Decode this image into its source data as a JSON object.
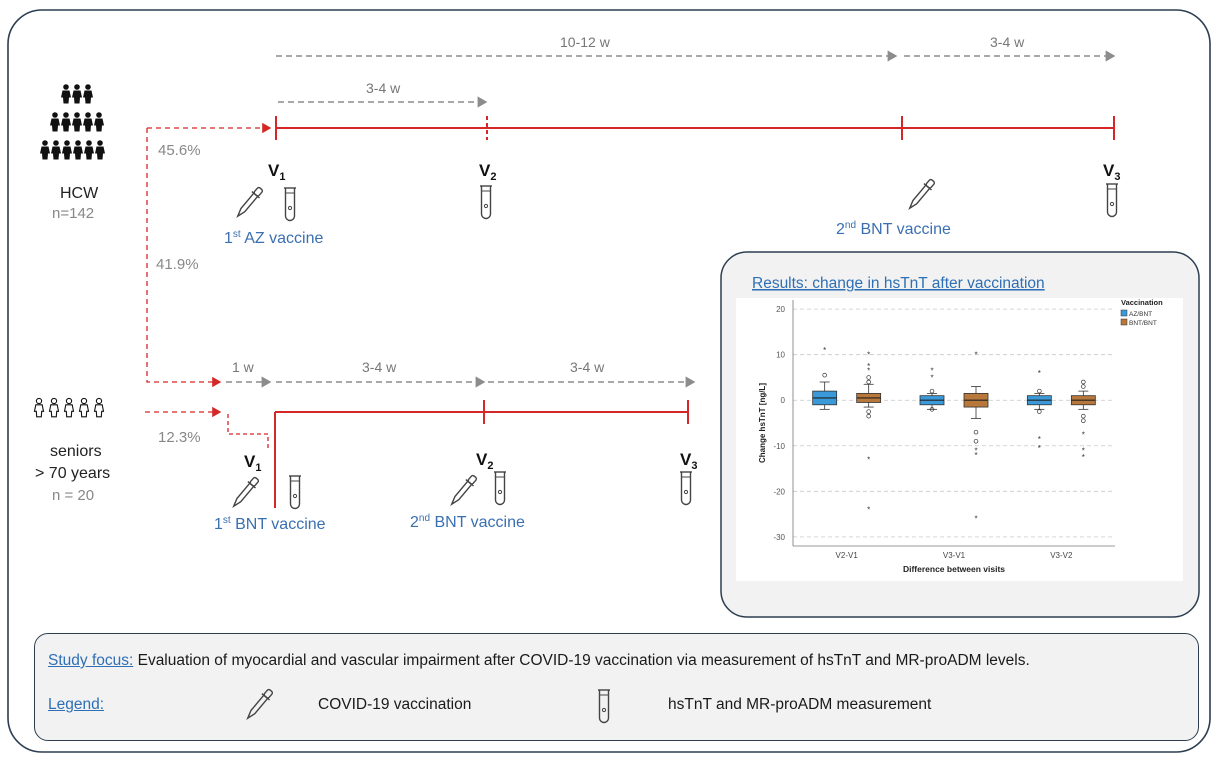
{
  "hcw": {
    "label": "HCW",
    "n": "n=142",
    "pct_top": "45.6%",
    "pct_mid": "41.9%",
    "timeline_top": "10-12 w",
    "timeline_top_right": "3-4 w",
    "interval": "3-4 w",
    "v1": "V",
    "v1_sub": "1",
    "v2": "V",
    "v2_sub": "2",
    "v3": "V",
    "v3_sub": "3",
    "vaccine1_sup": "1",
    "vaccine1_supsuffix": "st",
    "vaccine1_text": " AZ vaccine",
    "vaccine2_sup": "2",
    "vaccine2_supsuffix": "nd",
    "vaccine2_text": " BNT vaccine"
  },
  "seniors": {
    "label_line1": "seniors",
    "label_line2": "> 70 years",
    "n": "n = 20",
    "pct": "12.3%",
    "interval1": "1 w",
    "interval2": "3-4 w",
    "interval3": "3-4 w",
    "v1": "V",
    "v1_sub": "1",
    "v2": "V",
    "v2_sub": "2",
    "v3": "V",
    "v3_sub": "3",
    "vaccine1_sup": "1",
    "vaccine1_supsuffix": "st",
    "vaccine1_text": " BNT vaccine",
    "vaccine2_sup": "2",
    "vaccine2_supsuffix": "nd",
    "vaccine2_text": " BNT vaccine"
  },
  "results": {
    "title": "Results: change in hsTnT after vaccination",
    "chart_data": {
      "type": "box",
      "ylabel": "Change hsTnT [ng/L]",
      "xlabel": "Difference between visits",
      "ylim": [
        -32,
        22
      ],
      "yticks": [
        "20",
        "10",
        "0",
        "-10",
        "-20",
        "-30"
      ],
      "categories": [
        "V2-V1",
        "V3-V1",
        "V3-V2"
      ],
      "legend_title": "Vaccination",
      "legend_position": "top-right",
      "series": [
        {
          "name": "AZ/BNT",
          "color": "#3a9ad9",
          "boxes": [
            {
              "q1": -1.0,
              "median": 0.5,
              "q3": 2.0,
              "wmin": -2.0,
              "wmax": 4.0,
              "outliers": [
                5.5
              ],
              "extremes": [
                11
              ]
            },
            {
              "q1": -1.0,
              "median": 0.0,
              "q3": 1.0,
              "wmin": -2.0,
              "wmax": 1.5,
              "outliers": [
                2.0,
                -2.0
              ],
              "extremes": [
                5.0,
                6.5
              ]
            },
            {
              "q1": -1.0,
              "median": 0.0,
              "q3": 1.0,
              "wmin": -2.0,
              "wmax": 1.5,
              "outliers": [
                2.0,
                -2.5
              ],
              "extremes": [
                6.0,
                -8.5,
                -10.5
              ]
            }
          ]
        },
        {
          "name": "BNT/BNT",
          "color": "#b9783b",
          "boxes": [
            {
              "q1": -0.5,
              "median": 0.5,
              "q3": 1.5,
              "wmin": -1.5,
              "wmax": 3.5,
              "outliers": [
                5.0,
                4.0,
                -2.5,
                -3.5
              ],
              "extremes": [
                10,
                7.5,
                6.5,
                -13,
                -24
              ]
            },
            {
              "q1": -1.5,
              "median": 0.0,
              "q3": 1.5,
              "wmin": -4.0,
              "wmax": 3.0,
              "outliers": [
                -7.0,
                -9.0
              ],
              "extremes": [
                10,
                -11,
                -12,
                -26
              ]
            },
            {
              "q1": -1.0,
              "median": 0.0,
              "q3": 1.0,
              "wmin": -2.0,
              "wmax": 2.0,
              "outliers": [
                4.0,
                3.0,
                -3.5,
                -4.5
              ],
              "extremes": [
                -7.5,
                -11,
                -12.5
              ]
            }
          ]
        }
      ]
    }
  },
  "study_focus": {
    "label": "Study focus:",
    "text": " Evaluation of myocardial and vascular impairment after COVID-19 vaccination via measurement of hsTnT and MR-proADM levels."
  },
  "legend": {
    "label": "Legend:",
    "vaccination": "COVID-19 vaccination",
    "measurement": "hsTnT and MR-proADM measurement"
  },
  "colors": {
    "timeline": "#d62728",
    "arrow_grey": "#8c8c8c",
    "vaccine_text": "#3a6fb0",
    "frame": "#2c3e50"
  }
}
